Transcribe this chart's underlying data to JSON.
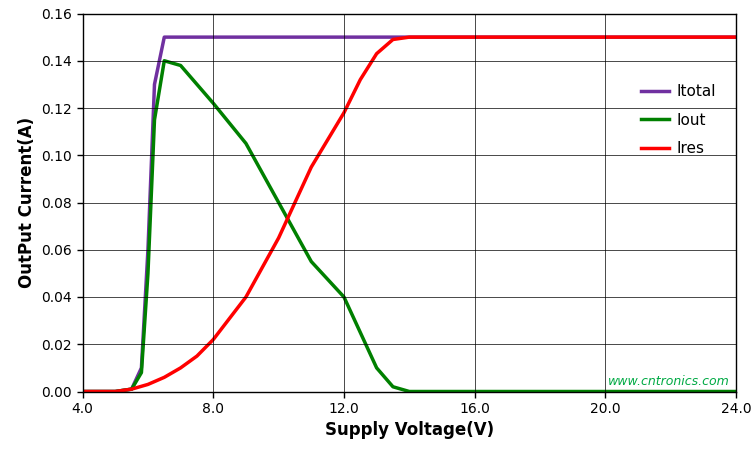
{
  "title": "",
  "xlabel": "Supply Voltage(V)",
  "ylabel": "OutPut Current(A)",
  "xlim": [
    4.0,
    24.0
  ],
  "ylim": [
    0.0,
    0.16
  ],
  "xticks": [
    4.0,
    8.0,
    12.0,
    16.0,
    20.0,
    24.0
  ],
  "yticks": [
    0.0,
    0.02,
    0.04,
    0.06,
    0.08,
    0.1,
    0.12,
    0.14,
    0.16
  ],
  "itotal_color": "#7030A0",
  "iout_color": "#008000",
  "ires_color": "#FF0000",
  "itotal_label": "Itotal",
  "iout_label": "Iout",
  "ires_label": "Ires",
  "linewidth": 2.5,
  "watermark_text": "www.cntronics.com",
  "watermark_color": "#00AA44",
  "watermark_fontsize": 9,
  "background_color": "#ffffff",
  "grid_color": "#000000",
  "legend_fontsize": 11,
  "axis_label_fontsize": 12,
  "tick_fontsize": 10,
  "itotal_x": [
    4.0,
    5.0,
    5.5,
    5.8,
    6.0,
    6.2,
    6.5,
    7.0,
    24.0
  ],
  "itotal_y": [
    0.0,
    0.0,
    0.001,
    0.01,
    0.06,
    0.13,
    0.15,
    0.15,
    0.15
  ],
  "iout_x": [
    4.0,
    5.0,
    5.5,
    5.8,
    6.0,
    6.2,
    6.5,
    7.0,
    8.0,
    9.0,
    10.0,
    11.0,
    12.0,
    13.0,
    13.5,
    14.0,
    24.0
  ],
  "iout_y": [
    0.0,
    0.0,
    0.001,
    0.008,
    0.05,
    0.115,
    0.14,
    0.138,
    0.122,
    0.105,
    0.08,
    0.055,
    0.04,
    0.01,
    0.002,
    0.0,
    0.0
  ],
  "ires_x": [
    4.0,
    4.5,
    5.0,
    5.5,
    6.0,
    6.5,
    7.0,
    7.5,
    8.0,
    9.0,
    10.0,
    11.0,
    12.0,
    12.5,
    13.0,
    13.5,
    14.0,
    14.5,
    15.0,
    24.0
  ],
  "ires_y": [
    0.0,
    0.0,
    0.0,
    0.001,
    0.003,
    0.006,
    0.01,
    0.015,
    0.022,
    0.04,
    0.065,
    0.095,
    0.118,
    0.132,
    0.143,
    0.149,
    0.15,
    0.15,
    0.15,
    0.15
  ]
}
